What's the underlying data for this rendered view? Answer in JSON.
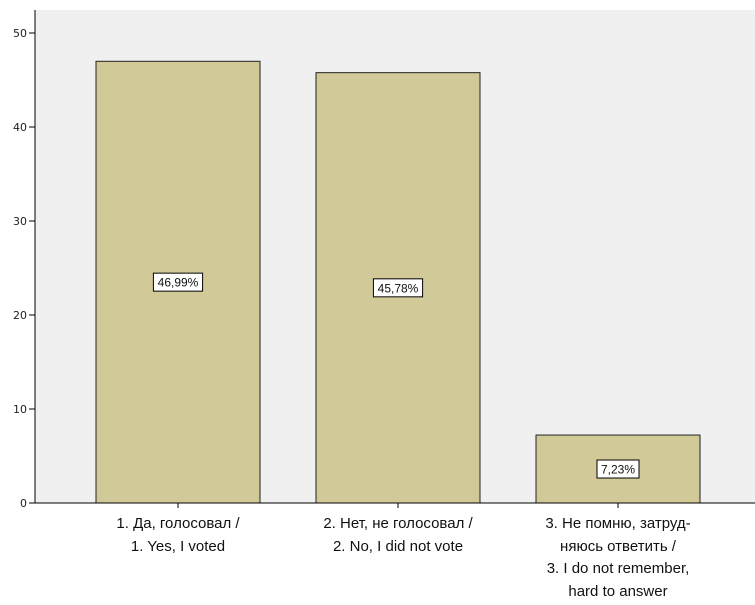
{
  "chart_data": {
    "type": "bar",
    "categories": [
      {
        "line1": "1. Да, голосовал /",
        "line2": "1. Yes, I voted"
      },
      {
        "line1": "2. Нет, не голосовал /",
        "line2": "2. No, I did not vote"
      },
      {
        "line1": "3. Не помню, затруд-",
        "line1b": "няюсь ответить /",
        "line2": "3. I do not remember,",
        "line2b": "hard to answer"
      }
    ],
    "values": [
      46.99,
      45.78,
      7.23
    ],
    "data_labels": [
      "46,99%",
      "45,78%",
      "7,23%"
    ],
    "yticks": [
      "0",
      "10",
      "20",
      "30",
      "40",
      "50"
    ],
    "ylim": [
      0,
      50
    ],
    "grid": false,
    "colors": {
      "plot_background": "#f0f0f0",
      "bar_fill": "#d1ca98",
      "bar_stroke": "#222222",
      "label_box": "#ffffff"
    }
  }
}
